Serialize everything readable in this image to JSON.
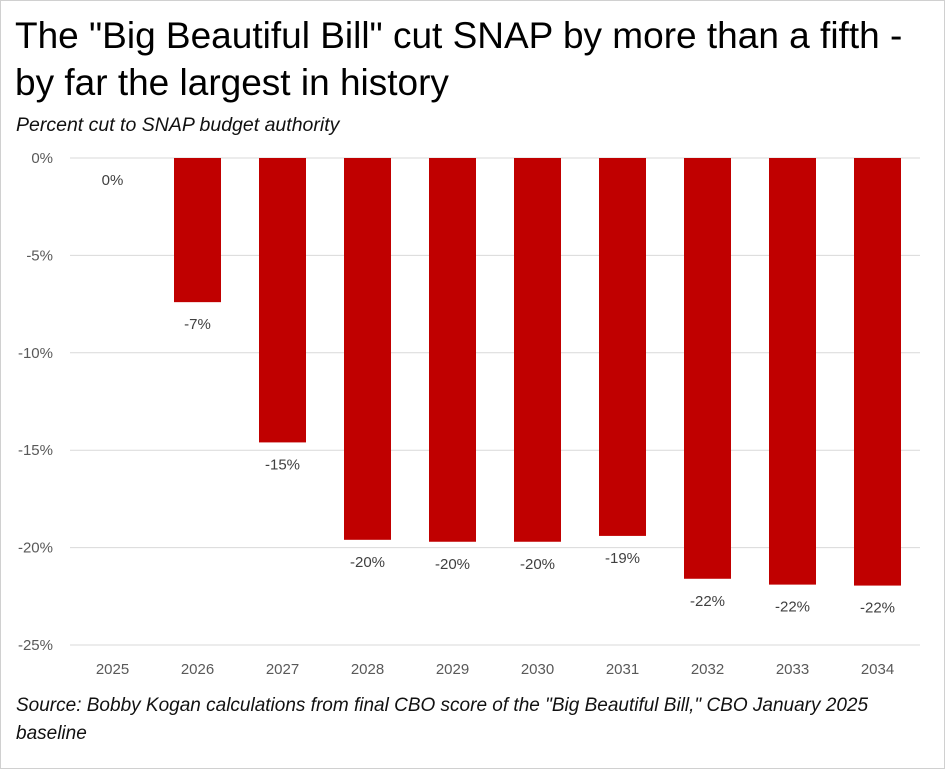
{
  "title": "The \"Big Beautiful Bill\" cut SNAP by more than a fifth - by far the largest in history",
  "subtitle": "Percent cut to SNAP budget authority",
  "source": "Source: Bobby Kogan calculations from final CBO score of the \"Big Beautiful Bill,\" CBO January 2025 baseline",
  "chart_data": {
    "type": "bar",
    "title": "The \"Big Beautiful Bill\" cut SNAP by more than a fifth - by far the largest in history",
    "subtitle": "Percent cut to SNAP budget authority",
    "xlabel": "",
    "ylabel": "",
    "categories": [
      "2025",
      "2026",
      "2027",
      "2028",
      "2029",
      "2030",
      "2031",
      "2032",
      "2033",
      "2034"
    ],
    "values": [
      0,
      -7.4,
      -14.6,
      -19.6,
      -19.7,
      -19.7,
      -19.4,
      -21.6,
      -21.9,
      -21.95
    ],
    "data_labels": [
      "0%",
      "-7%",
      "-15%",
      "-20%",
      "-20%",
      "-20%",
      "-19%",
      "-22%",
      "-22%",
      "-22%"
    ],
    "ylim": [
      -25,
      0
    ],
    "yticks": [
      0,
      -5,
      -10,
      -15,
      -20,
      -25
    ],
    "ytick_labels": [
      "0%",
      "-5%",
      "-10%",
      "-15%",
      "-20%",
      "-25%"
    ],
    "grid": true,
    "legend": "none",
    "bar_color": "#C00000",
    "grid_color": "#D9D9D9"
  }
}
